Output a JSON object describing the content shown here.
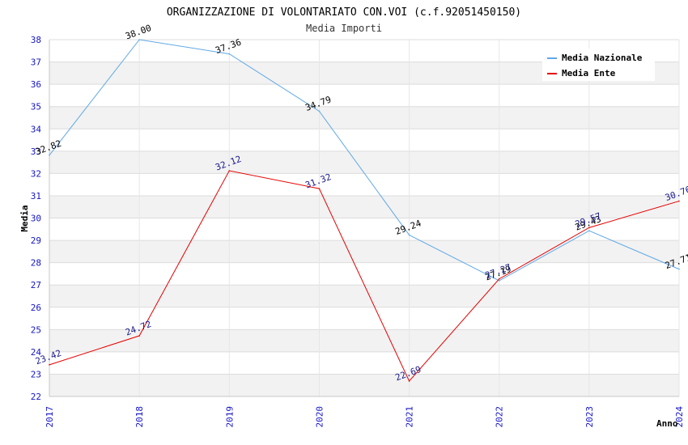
{
  "chart_data": {
    "type": "line",
    "title": "ORGANIZZAZIONE DI VOLONTARIATO CON.VOI (c.f.92051450150)",
    "subtitle": "Media Importi",
    "xlabel": "Anno",
    "ylabel": "Media",
    "categories": [
      "2017",
      "2018",
      "2019",
      "2020",
      "2021",
      "2022",
      "2023",
      "2024"
    ],
    "ylim": [
      22,
      38
    ],
    "yticks": [
      22,
      23,
      24,
      25,
      26,
      27,
      28,
      29,
      30,
      31,
      32,
      33,
      34,
      35,
      36,
      37,
      38
    ],
    "grid": "horizontal alternating bands",
    "legend_position": "top-right",
    "series": [
      {
        "name": "Media Nazionale",
        "color": "#5fa8e6",
        "label_color": "#000000",
        "values": [
          32.82,
          38.0,
          37.36,
          34.79,
          29.24,
          27.19,
          29.43,
          27.71
        ],
        "labels": [
          "32.82",
          "38.00",
          "37.36",
          "34.79",
          "29.24",
          "27.19",
          "29.43",
          "27.71"
        ]
      },
      {
        "name": "Media Ente",
        "color": "#e60000",
        "label_color": "#1a1a8c",
        "values": [
          23.42,
          24.72,
          32.12,
          31.32,
          22.69,
          27.27,
          29.57,
          30.76
        ],
        "labels": [
          "23.42",
          "24.72",
          "32.12",
          "31.32",
          "22.69",
          "27.27",
          "29.57",
          "30.76"
        ]
      }
    ]
  }
}
